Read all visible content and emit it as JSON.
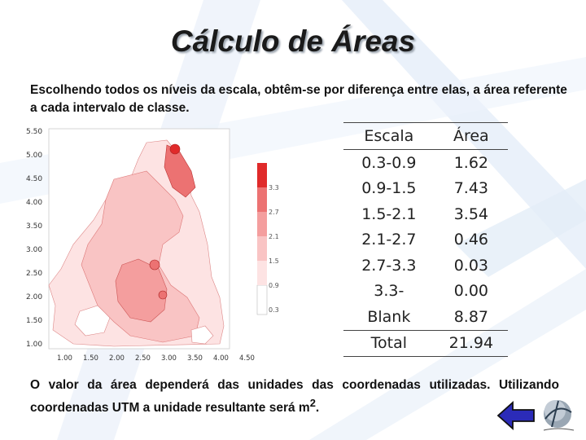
{
  "slide": {
    "title": "Cálculo de Áreas",
    "intro": "Escolhendo todos os níveis da escala, obtêm-se por diferença entre elas, a área referente a cada intervalo de classe.",
    "outro_pre": "O valor da área dependerá das unidades das coordenadas utilizadas. Utilizando coordenadas UTM a unidade resultante será m",
    "outro_sup": "2",
    "outro_post": "."
  },
  "map": {
    "y_ticks": [
      "5.50",
      "5.00",
      "4.50",
      "4.00",
      "3.50",
      "3.00",
      "2.50",
      "2.00",
      "1.50",
      "1.00"
    ],
    "x_ticks": [
      "1.00",
      "1.50",
      "2.00",
      "2.50",
      "3.00",
      "3.50",
      "4.00",
      "4.50"
    ],
    "colorbar_labels": [
      "3.3",
      "2.7",
      "2.1",
      "1.5",
      "0.9",
      "0.3"
    ],
    "colors": [
      "#ffffff",
      "#fde3e3",
      "#f9c4c4",
      "#f49e9e",
      "#ec7272",
      "#e02a2a"
    ]
  },
  "table": {
    "headers": [
      "Escala",
      "Área"
    ],
    "rows": [
      [
        "0.3-0.9",
        "1.62"
      ],
      [
        "0.9-1.5",
        "7.43"
      ],
      [
        "1.5-2.1",
        "3.54"
      ],
      [
        "2.1-2.7",
        "0.46"
      ],
      [
        "2.7-3.3",
        "0.03"
      ],
      [
        "3.3-",
        "0.00"
      ],
      [
        "Blank",
        "8.87"
      ]
    ],
    "total_label": "Total",
    "total_value": "21.94"
  }
}
